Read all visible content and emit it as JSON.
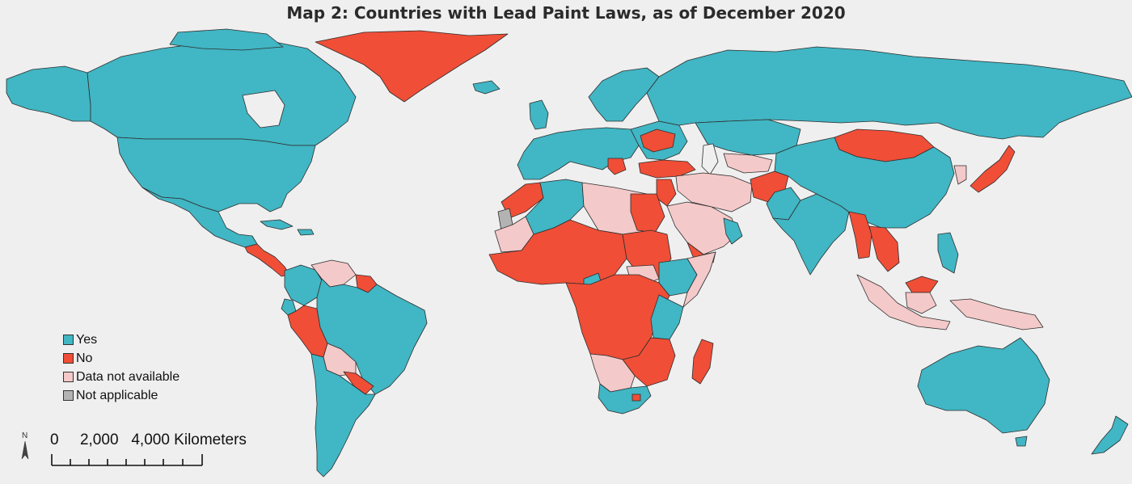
{
  "map": {
    "title": "Map 2: Countries with Lead Paint Laws, as of December 2020",
    "colors": {
      "background": "#efefef",
      "yes": "#41b6c4",
      "no": "#f04e37",
      "not_available": "#f4c9c9",
      "not_applicable": "#b3b3b3",
      "border": "#2e2e2e"
    },
    "legend": {
      "items": [
        {
          "key": "yes",
          "label": "Yes",
          "color": "#41b6c4"
        },
        {
          "key": "no",
          "label": "No",
          "color": "#f04e37"
        },
        {
          "key": "not_available",
          "label": "Data not available",
          "color": "#f4c9c9"
        },
        {
          "key": "not_applicable",
          "label": "Not applicable",
          "color": "#b3b3b3"
        }
      ]
    },
    "scale": {
      "text": "0     2,000   4,000 Kilometers",
      "north_label": "N"
    },
    "regions_shown": [
      "North America",
      "Central America",
      "South America",
      "Greenland",
      "Europe",
      "Russia",
      "Middle East",
      "Africa",
      "Madagascar",
      "South Asia",
      "East Asia",
      "Southeast Asia",
      "Japan",
      "Indonesia",
      "Australia",
      "New Zealand"
    ]
  }
}
